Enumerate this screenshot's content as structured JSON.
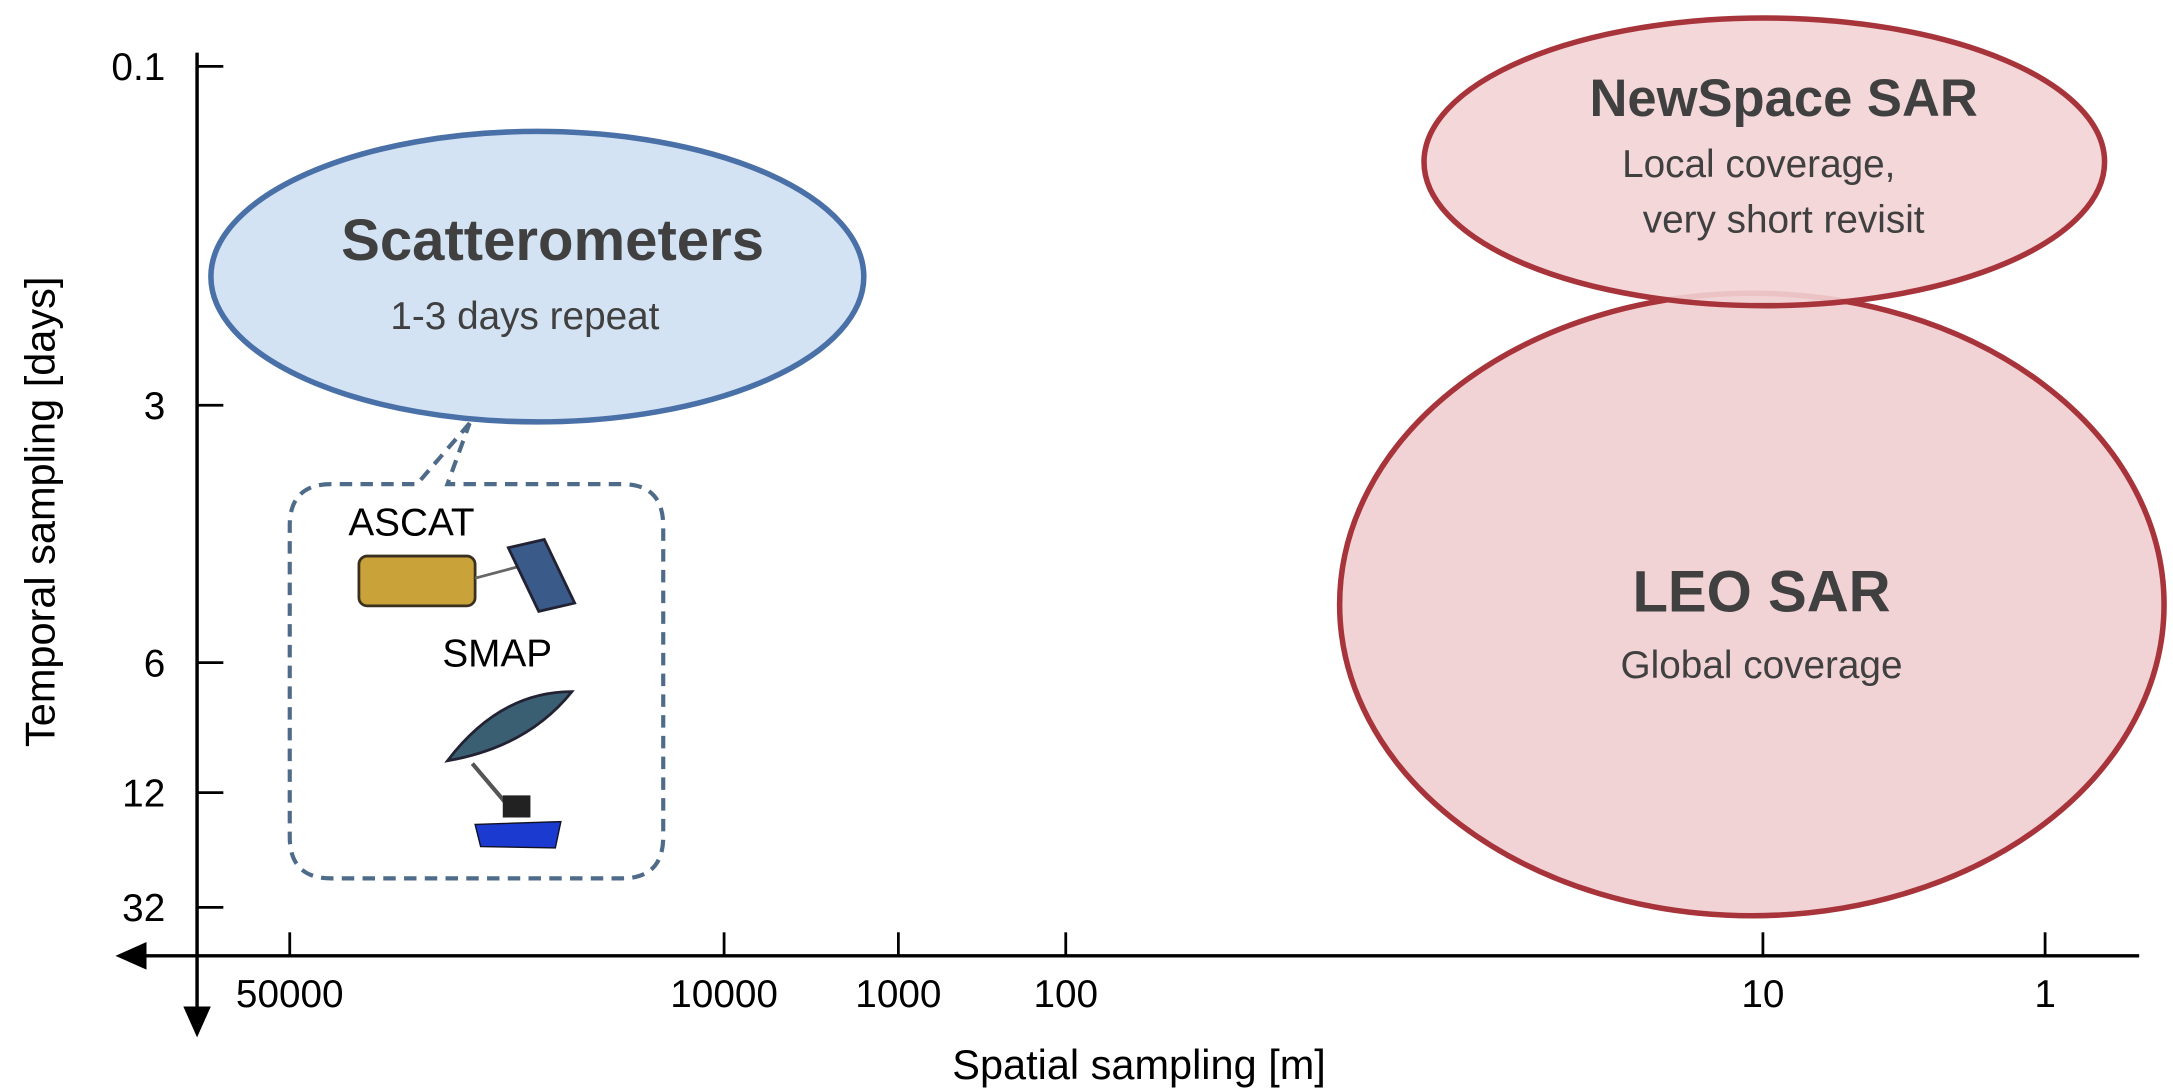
{
  "x_axis": {
    "label": "Spatial sampling [m]",
    "ticks": [
      "50000",
      "10000",
      "1000",
      "100",
      "10",
      "1"
    ]
  },
  "y_axis": {
    "label": "Temporal  sampling [days]",
    "ticks": [
      "0.1",
      "3",
      "6",
      "12",
      "32"
    ]
  },
  "groups": [
    {
      "title": "Scatterometers",
      "subtitle": [
        "1-3 days repeat"
      ]
    },
    {
      "title": "NewSpace SAR",
      "subtitle": [
        "Local coverage,",
        "very short revisit"
      ]
    },
    {
      "title": "LEO SAR",
      "subtitle": [
        "Global coverage"
      ]
    }
  ],
  "instruments": [
    "ASCAT",
    "SMAP"
  ]
}
